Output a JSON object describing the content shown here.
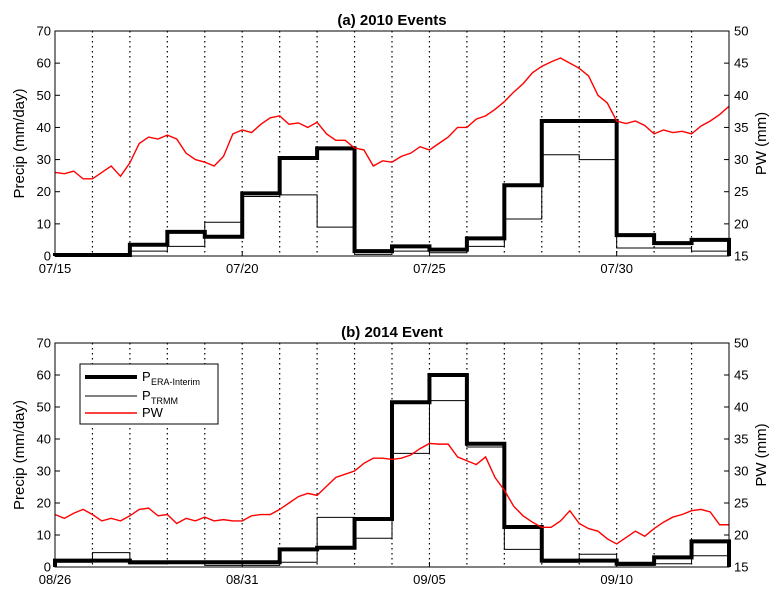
{
  "chart_data": [
    {
      "type": "line",
      "title": "(a) 2010 Events",
      "ylabel": "Precip (mm/day)",
      "ylabel_right": "PW (mm)",
      "ylim": [
        0,
        70
      ],
      "ylim_right": [
        15,
        50
      ],
      "yticks": [
        0,
        10,
        20,
        30,
        40,
        50,
        60,
        70
      ],
      "yticks_right": [
        15,
        20,
        25,
        30,
        35,
        40,
        45,
        50
      ],
      "x_day_range": [
        0,
        18
      ],
      "x_tick_days": [
        0,
        5,
        10,
        15
      ],
      "x_tick_labels": [
        "07/15",
        "07/20",
        "07/25",
        "07/30"
      ],
      "grid_days": [
        1,
        2,
        3,
        4,
        5,
        6,
        7,
        8,
        9,
        10,
        11,
        12,
        13,
        14,
        15,
        16,
        17
      ],
      "series": [
        {
          "name": "P ERA-Interim",
          "color": "#000000",
          "style": "step",
          "values": [
            0.3,
            0.3,
            3.5,
            7.5,
            6,
            19.5,
            30.5,
            33.5,
            1.5,
            3,
            2,
            5.5,
            22,
            42,
            42,
            6.5,
            4,
            5
          ]
        },
        {
          "name": "P TRMM",
          "color": "#000000",
          "style": "step",
          "values": [
            0.2,
            0.2,
            1.5,
            3,
            10.5,
            18.5,
            19,
            9,
            0.5,
            1.5,
            1,
            3,
            11.5,
            31.5,
            30,
            2.5,
            2.5,
            1.5
          ]
        },
        {
          "name": "PW",
          "color": "#ff0000",
          "style": "line",
          "x": [
            0,
            0.25,
            0.5,
            0.75,
            1,
            1.25,
            1.5,
            1.75,
            2,
            2.25,
            2.5,
            2.75,
            3,
            3.25,
            3.5,
            3.75,
            4,
            4.25,
            4.5,
            4.75,
            5,
            5.25,
            5.5,
            5.75,
            6,
            6.25,
            6.5,
            6.75,
            7,
            7.25,
            7.5,
            7.75,
            8,
            8.25,
            8.5,
            8.75,
            9,
            9.25,
            9.5,
            9.75,
            10,
            10.25,
            10.5,
            10.75,
            11,
            11.25,
            11.5,
            11.75,
            12,
            12.25,
            12.5,
            12.75,
            13,
            13.25,
            13.5,
            13.75,
            14,
            14.25,
            14.5,
            14.75,
            15,
            15.25,
            15.5,
            15.75,
            16,
            16.25,
            16.5,
            16.75,
            17,
            17.25,
            17.5,
            17.75,
            18
          ],
          "values": [
            28,
            27.8,
            28.2,
            27,
            27,
            28,
            29,
            27.4,
            29.5,
            32.5,
            33.5,
            33.2,
            33.8,
            33.2,
            31,
            30,
            29.6,
            29,
            30.5,
            34,
            34.6,
            34.2,
            35.5,
            36.5,
            36.8,
            35.5,
            35.7,
            35,
            35.8,
            34,
            33,
            33,
            31.8,
            31.5,
            29,
            29.8,
            29.6,
            30.5,
            31,
            32,
            31.5,
            32.5,
            33.5,
            35,
            35,
            36.3,
            36.8,
            37.8,
            39,
            40.5,
            41.8,
            43.5,
            44.5,
            45.2,
            45.8,
            45,
            44.2,
            43,
            40,
            38.8,
            36,
            35.6,
            36,
            35.3,
            34,
            34.6,
            34.2,
            34.4,
            34,
            35.2,
            36,
            37,
            38.3
          ]
        }
      ]
    },
    {
      "type": "line",
      "title": "(b) 2014 Event",
      "ylabel": "Precip (mm/day)",
      "ylabel_right": "PW (mm)",
      "ylim": [
        0,
        70
      ],
      "ylim_right": [
        15,
        50
      ],
      "yticks": [
        0,
        10,
        20,
        30,
        40,
        50,
        60,
        70
      ],
      "yticks_right": [
        15,
        20,
        25,
        30,
        35,
        40,
        45,
        50
      ],
      "x_day_range": [
        0,
        18
      ],
      "x_tick_days": [
        0,
        5,
        10,
        15
      ],
      "x_tick_labels": [
        "08/26",
        "08/31",
        "09/05",
        "09/10"
      ],
      "grid_days": [
        1,
        2,
        3,
        4,
        5,
        6,
        7,
        8,
        9,
        10,
        11,
        12,
        13,
        14,
        15,
        16,
        17
      ],
      "legend": {
        "placement": "top-left",
        "entries": [
          {
            "main": "P",
            "sub": "ERA-Interim"
          },
          {
            "main": "P",
            "sub": "TRMM"
          },
          {
            "main": "PW",
            "sub": ""
          }
        ]
      },
      "series": [
        {
          "name": "P ERA-Interim",
          "color": "#000000",
          "style": "step",
          "values": [
            2,
            2,
            1.5,
            1.5,
            1.5,
            1.5,
            5.5,
            6,
            15,
            51.5,
            60,
            38.5,
            12.5,
            2,
            2,
            1,
            3,
            8
          ]
        },
        {
          "name": "P TRMM",
          "color": "#000000",
          "style": "step",
          "values": [
            1.5,
            4.5,
            1,
            1.5,
            0.5,
            0.5,
            1.5,
            15.5,
            9,
            35.5,
            52,
            37.5,
            5.5,
            1.5,
            4,
            0.5,
            1,
            3.5
          ]
        },
        {
          "name": "PW",
          "color": "#ff0000",
          "style": "line",
          "x": [
            0,
            0.25,
            0.5,
            0.75,
            1,
            1.25,
            1.5,
            1.75,
            2,
            2.25,
            2.5,
            2.75,
            3,
            3.25,
            3.5,
            3.75,
            4,
            4.25,
            4.5,
            4.75,
            5,
            5.25,
            5.5,
            5.75,
            6,
            6.25,
            6.5,
            6.75,
            7,
            7.25,
            7.5,
            7.75,
            8,
            8.25,
            8.5,
            8.75,
            9,
            9.25,
            9.5,
            9.75,
            10,
            10.25,
            10.5,
            10.75,
            11,
            11.25,
            11.5,
            11.75,
            12,
            12.25,
            12.5,
            12.75,
            13,
            13.25,
            13.5,
            13.75,
            14,
            14.25,
            14.5,
            14.75,
            15,
            15.25,
            15.5,
            15.75,
            16,
            16.25,
            16.5,
            16.75,
            17,
            17.25,
            17.5,
            17.75,
            18
          ],
          "values": [
            23.2,
            22.6,
            23.4,
            24,
            23.2,
            22.2,
            22.6,
            22.2,
            23,
            24,
            24.2,
            23,
            23.2,
            21.8,
            22.6,
            22.2,
            22.8,
            22.2,
            22.4,
            22.2,
            22.2,
            23,
            23.2,
            23.2,
            24,
            25,
            26,
            26.5,
            26.2,
            27.6,
            29,
            29.5,
            30,
            31.2,
            32,
            32,
            31.8,
            32,
            32.5,
            33.5,
            34.3,
            34.2,
            34.2,
            32.2,
            31.6,
            31,
            32.2,
            29,
            27,
            24.5,
            23,
            22,
            21.2,
            21.2,
            22.2,
            23.8,
            21.8,
            21,
            20.6,
            19.4,
            18.6,
            19.6,
            20.6,
            19.8,
            21,
            22,
            22.8,
            23.2,
            23.8,
            24,
            23.6,
            21.6,
            21.6
          ]
        }
      ]
    }
  ]
}
